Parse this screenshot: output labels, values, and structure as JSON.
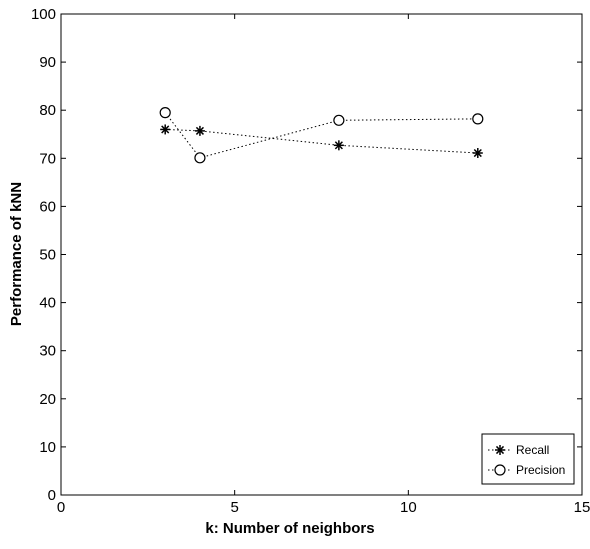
{
  "chart_data": {
    "type": "line",
    "title": "",
    "xlabel": "k: Number of neighbors",
    "ylabel": "Performance of kNN",
    "xlim": [
      0,
      15
    ],
    "ylim": [
      0,
      100
    ],
    "xticks": [
      0,
      5,
      10,
      15
    ],
    "yticks": [
      0,
      10,
      20,
      30,
      40,
      50,
      60,
      70,
      80,
      90,
      100
    ],
    "grid": false,
    "legend_position": "bottom-right",
    "series": [
      {
        "name": "Recall",
        "marker": "asterisk",
        "line_style": "dotted",
        "color": "#000000",
        "x": [
          3,
          4,
          8,
          12
        ],
        "y": [
          76,
          75.7,
          72.7,
          71.1
        ]
      },
      {
        "name": "Precision",
        "marker": "circle",
        "line_style": "dotted",
        "color": "#000000",
        "x": [
          3,
          4,
          8,
          12
        ],
        "y": [
          79.5,
          70.1,
          77.9,
          78.2
        ]
      }
    ]
  }
}
